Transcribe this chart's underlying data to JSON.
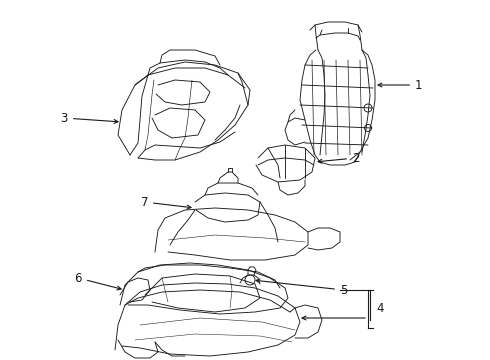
{
  "background_color": "#ffffff",
  "line_color": "#1a1a1a",
  "label_color": "#000000",
  "fig_width": 4.9,
  "fig_height": 3.6,
  "dpi": 100,
  "lw": 0.65,
  "label_fs": 8.5
}
